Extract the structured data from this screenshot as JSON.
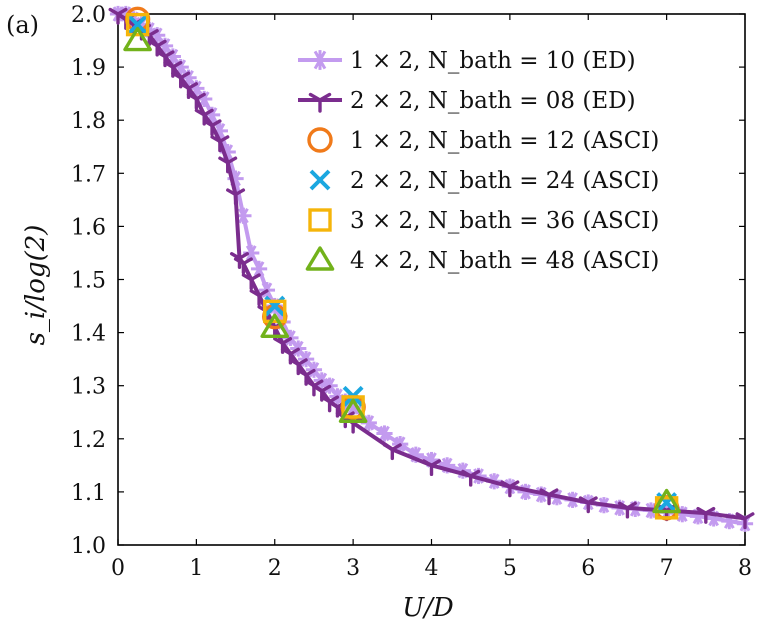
{
  "chart_data": {
    "type": "line",
    "panel_label": "(a)",
    "xlabel": "U/D",
    "ylabel": "s_i/log(2)",
    "xlim": [
      0,
      8
    ],
    "ylim": [
      1.0,
      2.0
    ],
    "x_ticks": [
      "0",
      "1",
      "2",
      "3",
      "4",
      "5",
      "6",
      "7",
      "8"
    ],
    "y_ticks": [
      "1.0",
      "1.1",
      "1.2",
      "1.3",
      "1.4",
      "1.5",
      "1.6",
      "1.7",
      "1.8",
      "1.9",
      "2.0"
    ],
    "grid": false,
    "legend_position": "top-right",
    "series": [
      {
        "name": "1 × 2, N_bath = 10 (ED)",
        "color": "#c39bef",
        "marker": "star",
        "style": "line",
        "x": [
          0,
          0.1,
          0.2,
          0.3,
          0.4,
          0.5,
          0.6,
          0.7,
          0.8,
          0.9,
          1.0,
          1.1,
          1.2,
          1.3,
          1.4,
          1.5,
          1.6,
          1.7,
          1.8,
          1.9,
          2.0,
          2.1,
          2.2,
          2.3,
          2.4,
          2.5,
          2.6,
          2.7,
          2.8,
          2.9,
          3.0,
          3.2,
          3.4,
          3.6,
          3.8,
          4.0,
          4.2,
          4.4,
          4.6,
          4.8,
          5.0,
          5.2,
          5.4,
          5.6,
          5.8,
          6.0,
          6.2,
          6.4,
          6.6,
          6.8,
          7.0,
          7.2,
          7.4,
          7.6,
          7.8,
          8.0
        ],
        "values": [
          2.0,
          2.0,
          1.99,
          1.98,
          1.97,
          1.96,
          1.94,
          1.92,
          1.9,
          1.88,
          1.86,
          1.84,
          1.81,
          1.78,
          1.74,
          1.69,
          1.62,
          1.55,
          1.52,
          1.48,
          1.45,
          1.42,
          1.39,
          1.37,
          1.35,
          1.33,
          1.31,
          1.3,
          1.28,
          1.27,
          1.26,
          1.23,
          1.21,
          1.19,
          1.17,
          1.16,
          1.15,
          1.14,
          1.13,
          1.12,
          1.11,
          1.1,
          1.095,
          1.09,
          1.085,
          1.08,
          1.075,
          1.07,
          1.068,
          1.065,
          1.062,
          1.058,
          1.054,
          1.05,
          1.045,
          1.04
        ]
      },
      {
        "name": "2 × 2, N_bath = 08 (ED)",
        "color": "#7b2d8e",
        "marker": "tri-down",
        "style": "line",
        "x": [
          0,
          0.1,
          0.2,
          0.3,
          0.4,
          0.5,
          0.6,
          0.7,
          0.8,
          0.9,
          1.0,
          1.1,
          1.2,
          1.3,
          1.4,
          1.5,
          1.55,
          1.6,
          1.7,
          1.8,
          1.9,
          2.0,
          2.1,
          2.2,
          2.3,
          2.4,
          2.5,
          2.6,
          2.7,
          2.8,
          2.9,
          3.0,
          3.5,
          4.0,
          4.5,
          5.0,
          5.5,
          6.0,
          6.5,
          7.0,
          7.5,
          8.0
        ],
        "values": [
          2.0,
          1.99,
          1.98,
          1.97,
          1.96,
          1.94,
          1.92,
          1.9,
          1.88,
          1.86,
          1.84,
          1.81,
          1.79,
          1.76,
          1.72,
          1.66,
          1.54,
          1.53,
          1.5,
          1.47,
          1.44,
          1.41,
          1.38,
          1.36,
          1.34,
          1.32,
          1.3,
          1.29,
          1.27,
          1.26,
          1.24,
          1.23,
          1.18,
          1.15,
          1.13,
          1.11,
          1.095,
          1.08,
          1.07,
          1.065,
          1.06,
          1.05
        ]
      },
      {
        "name": "1 × 2, N_bath = 12 (ASCI)",
        "color": "#f07a1a",
        "marker": "circle",
        "style": "markers",
        "x": [
          0.25,
          2.0,
          3.0,
          7.0
        ],
        "values": [
          1.99,
          1.43,
          1.26,
          1.07
        ]
      },
      {
        "name": "2 × 2, N_bath = 24 (ASCI)",
        "color": "#1aa7e0",
        "marker": "x",
        "style": "markers",
        "x": [
          0.25,
          2.0,
          3.0,
          7.0
        ],
        "values": [
          1.98,
          1.45,
          1.28,
          1.08
        ]
      },
      {
        "name": "3 × 2, N_bath = 36 (ASCI)",
        "color": "#f5b50a",
        "marker": "square",
        "style": "markers",
        "x": [
          0.25,
          2.0,
          3.0,
          7.0
        ],
        "values": [
          1.98,
          1.44,
          1.26,
          1.07
        ]
      },
      {
        "name": "4 × 2, N_bath = 48 (ASCI)",
        "color": "#72b21b",
        "marker": "triangle",
        "style": "markers",
        "x": [
          0.25,
          2.0,
          3.0,
          7.0
        ],
        "values": [
          1.95,
          1.41,
          1.25,
          1.08
        ]
      }
    ]
  }
}
